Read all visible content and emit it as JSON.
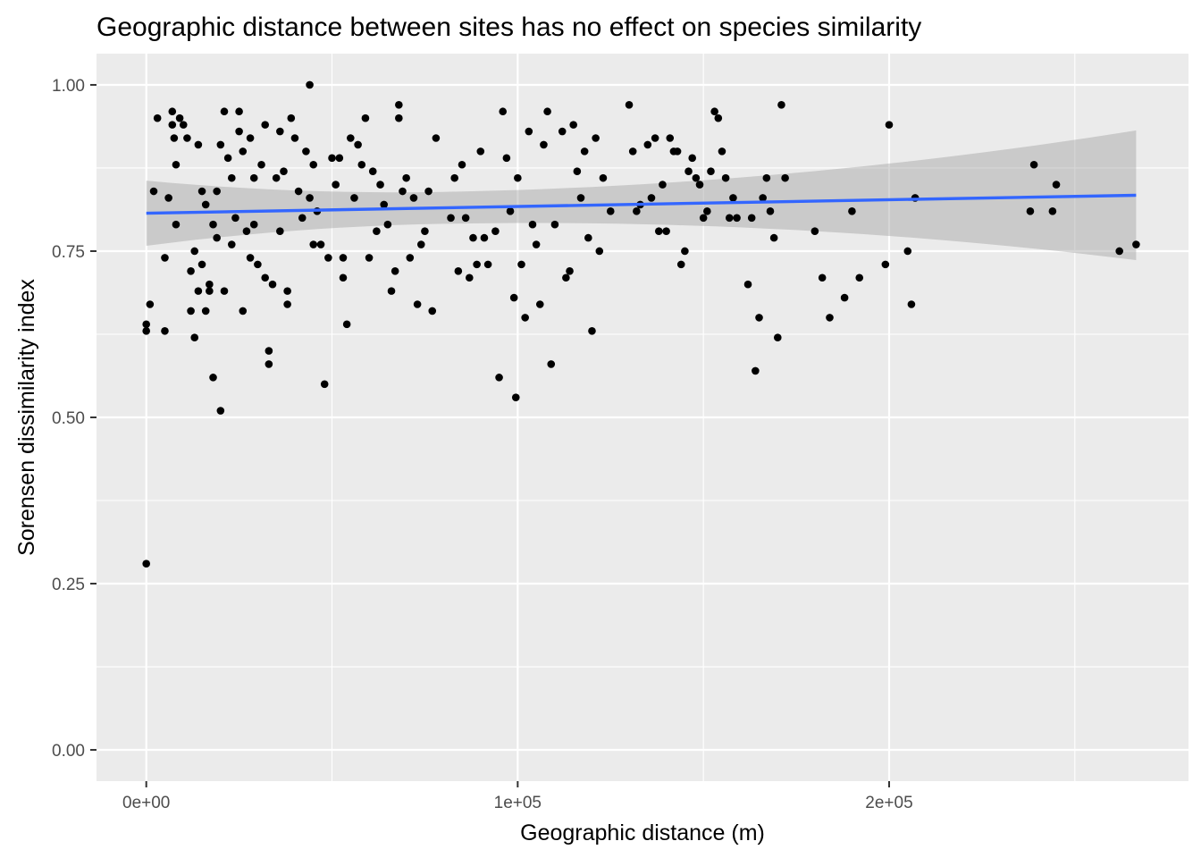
{
  "chart_data": {
    "type": "scatter",
    "title": "Geographic distance between sites has no effect on species similarity",
    "xlabel": "Geographic distance (m)",
    "ylabel": "Sorensen dissimilarity index",
    "xlim": [
      -13400,
      280600
    ],
    "ylim": [
      -0.047,
      1.047
    ],
    "x_ticks": [
      {
        "value": 0,
        "label": "0e+00"
      },
      {
        "value": 100000,
        "label": "1e+05"
      },
      {
        "value": 200000,
        "label": "2e+05"
      }
    ],
    "x_minor_ticks": [
      50000,
      150000,
      250000
    ],
    "y_ticks": [
      {
        "value": 0.0,
        "label": "0.00"
      },
      {
        "value": 0.25,
        "label": "0.25"
      },
      {
        "value": 0.5,
        "label": "0.50"
      },
      {
        "value": 0.75,
        "label": "0.75"
      },
      {
        "value": 1.0,
        "label": "1.00"
      }
    ],
    "y_minor_ticks": [
      0.125,
      0.375,
      0.625,
      0.875
    ],
    "grid": true,
    "legend": "none",
    "colors": {
      "panel": "#ebebeb",
      "grid": "#ffffff",
      "points": "#000000",
      "fit_line": "#3366ff",
      "confidence_band": "#999999"
    },
    "points": [
      {
        "x": 0,
        "y": 0.28
      },
      {
        "x": 0,
        "y": 0.63
      },
      {
        "x": 0,
        "y": 0.64
      },
      {
        "x": 1000,
        "y": 0.67
      },
      {
        "x": 2000,
        "y": 0.84
      },
      {
        "x": 3000,
        "y": 0.95
      },
      {
        "x": 5000,
        "y": 0.74
      },
      {
        "x": 5000,
        "y": 0.63
      },
      {
        "x": 6000,
        "y": 0.83
      },
      {
        "x": 7000,
        "y": 0.94
      },
      {
        "x": 7000,
        "y": 0.96
      },
      {
        "x": 7500,
        "y": 0.92
      },
      {
        "x": 8000,
        "y": 0.88
      },
      {
        "x": 8000,
        "y": 0.79
      },
      {
        "x": 9000,
        "y": 0.95
      },
      {
        "x": 10000,
        "y": 0.94
      },
      {
        "x": 11000,
        "y": 0.92
      },
      {
        "x": 12000,
        "y": 0.72
      },
      {
        "x": 12000,
        "y": 0.66
      },
      {
        "x": 13000,
        "y": 0.75
      },
      {
        "x": 13000,
        "y": 0.62
      },
      {
        "x": 14000,
        "y": 0.69
      },
      {
        "x": 14000,
        "y": 0.91
      },
      {
        "x": 15000,
        "y": 0.84
      },
      {
        "x": 15000,
        "y": 0.73
      },
      {
        "x": 16000,
        "y": 0.82
      },
      {
        "x": 16000,
        "y": 0.66
      },
      {
        "x": 17000,
        "y": 0.7
      },
      {
        "x": 17000,
        "y": 0.69
      },
      {
        "x": 18000,
        "y": 0.79
      },
      {
        "x": 18000,
        "y": 0.56
      },
      {
        "x": 19000,
        "y": 0.84
      },
      {
        "x": 19000,
        "y": 0.77
      },
      {
        "x": 20000,
        "y": 0.51
      },
      {
        "x": 20000,
        "y": 0.91
      },
      {
        "x": 21000,
        "y": 0.96
      },
      {
        "x": 21000,
        "y": 0.69
      },
      {
        "x": 22000,
        "y": 0.89
      },
      {
        "x": 23000,
        "y": 0.86
      },
      {
        "x": 23000,
        "y": 0.76
      },
      {
        "x": 24000,
        "y": 0.8
      },
      {
        "x": 25000,
        "y": 0.93
      },
      {
        "x": 25000,
        "y": 0.96
      },
      {
        "x": 26000,
        "y": 0.9
      },
      {
        "x": 26000,
        "y": 0.66
      },
      {
        "x": 27000,
        "y": 0.78
      },
      {
        "x": 28000,
        "y": 0.92
      },
      {
        "x": 28000,
        "y": 0.74
      },
      {
        "x": 29000,
        "y": 0.86
      },
      {
        "x": 29000,
        "y": 0.79
      },
      {
        "x": 30000,
        "y": 0.73
      },
      {
        "x": 31000,
        "y": 0.88
      },
      {
        "x": 32000,
        "y": 0.94
      },
      {
        "x": 32000,
        "y": 0.71
      },
      {
        "x": 33000,
        "y": 0.6
      },
      {
        "x": 33000,
        "y": 0.58
      },
      {
        "x": 34000,
        "y": 0.7
      },
      {
        "x": 35000,
        "y": 0.86
      },
      {
        "x": 36000,
        "y": 0.93
      },
      {
        "x": 36000,
        "y": 0.78
      },
      {
        "x": 37000,
        "y": 0.87
      },
      {
        "x": 38000,
        "y": 0.69
      },
      {
        "x": 38000,
        "y": 0.67
      },
      {
        "x": 39000,
        "y": 0.95
      },
      {
        "x": 40000,
        "y": 0.92
      },
      {
        "x": 41000,
        "y": 0.84
      },
      {
        "x": 42000,
        "y": 0.8
      },
      {
        "x": 43000,
        "y": 0.9
      },
      {
        "x": 44000,
        "y": 0.83
      },
      {
        "x": 44000,
        "y": 1.0
      },
      {
        "x": 45000,
        "y": 0.88
      },
      {
        "x": 45000,
        "y": 0.76
      },
      {
        "x": 46000,
        "y": 0.81
      },
      {
        "x": 47000,
        "y": 0.76
      },
      {
        "x": 48000,
        "y": 0.55
      },
      {
        "x": 49000,
        "y": 0.74
      },
      {
        "x": 50000,
        "y": 0.89
      },
      {
        "x": 51000,
        "y": 0.85
      },
      {
        "x": 52000,
        "y": 0.89
      },
      {
        "x": 53000,
        "y": 0.71
      },
      {
        "x": 53000,
        "y": 0.74
      },
      {
        "x": 54000,
        "y": 0.64
      },
      {
        "x": 55000,
        "y": 0.92
      },
      {
        "x": 56000,
        "y": 0.83
      },
      {
        "x": 57000,
        "y": 0.91
      },
      {
        "x": 58000,
        "y": 0.88
      },
      {
        "x": 59000,
        "y": 0.95
      },
      {
        "x": 60000,
        "y": 0.74
      },
      {
        "x": 61000,
        "y": 0.87
      },
      {
        "x": 62000,
        "y": 0.78
      },
      {
        "x": 63000,
        "y": 0.85
      },
      {
        "x": 64000,
        "y": 0.82
      },
      {
        "x": 65000,
        "y": 0.79
      },
      {
        "x": 66000,
        "y": 0.69
      },
      {
        "x": 67000,
        "y": 0.72
      },
      {
        "x": 68000,
        "y": 0.95
      },
      {
        "x": 68000,
        "y": 0.97
      },
      {
        "x": 69000,
        "y": 0.84
      },
      {
        "x": 70000,
        "y": 0.86
      },
      {
        "x": 71000,
        "y": 0.74
      },
      {
        "x": 72000,
        "y": 0.83
      },
      {
        "x": 73000,
        "y": 0.67
      },
      {
        "x": 74000,
        "y": 0.76
      },
      {
        "x": 75000,
        "y": 0.78
      },
      {
        "x": 76000,
        "y": 0.84
      },
      {
        "x": 77000,
        "y": 0.66
      },
      {
        "x": 78000,
        "y": 0.92
      },
      {
        "x": 82000,
        "y": 0.8
      },
      {
        "x": 83000,
        "y": 0.86
      },
      {
        "x": 84000,
        "y": 0.72
      },
      {
        "x": 85000,
        "y": 0.88
      },
      {
        "x": 86000,
        "y": 0.8
      },
      {
        "x": 87000,
        "y": 0.71
      },
      {
        "x": 88000,
        "y": 0.77
      },
      {
        "x": 89000,
        "y": 0.73
      },
      {
        "x": 90000,
        "y": 0.9
      },
      {
        "x": 91000,
        "y": 0.77
      },
      {
        "x": 92000,
        "y": 0.73
      },
      {
        "x": 94000,
        "y": 0.78
      },
      {
        "x": 95000,
        "y": 0.56
      },
      {
        "x": 96000,
        "y": 0.96
      },
      {
        "x": 97000,
        "y": 0.89
      },
      {
        "x": 98000,
        "y": 0.81
      },
      {
        "x": 99000,
        "y": 0.68
      },
      {
        "x": 99500,
        "y": 0.53
      },
      {
        "x": 100000,
        "y": 0.86
      },
      {
        "x": 101000,
        "y": 0.73
      },
      {
        "x": 102000,
        "y": 0.65
      },
      {
        "x": 103000,
        "y": 0.93
      },
      {
        "x": 104000,
        "y": 0.79
      },
      {
        "x": 105000,
        "y": 0.76
      },
      {
        "x": 106000,
        "y": 0.67
      },
      {
        "x": 107000,
        "y": 0.91
      },
      {
        "x": 108000,
        "y": 0.96
      },
      {
        "x": 109000,
        "y": 0.58
      },
      {
        "x": 110000,
        "y": 0.79
      },
      {
        "x": 112000,
        "y": 0.93
      },
      {
        "x": 113000,
        "y": 0.71
      },
      {
        "x": 114000,
        "y": 0.72
      },
      {
        "x": 115000,
        "y": 0.94
      },
      {
        "x": 116000,
        "y": 0.87
      },
      {
        "x": 117000,
        "y": 0.83
      },
      {
        "x": 118000,
        "y": 0.9
      },
      {
        "x": 119000,
        "y": 0.77
      },
      {
        "x": 120000,
        "y": 0.63
      },
      {
        "x": 121000,
        "y": 0.92
      },
      {
        "x": 122000,
        "y": 0.75
      },
      {
        "x": 123000,
        "y": 0.86
      },
      {
        "x": 125000,
        "y": 0.81
      },
      {
        "x": 130000,
        "y": 0.97
      },
      {
        "x": 131000,
        "y": 0.9
      },
      {
        "x": 132000,
        "y": 0.81
      },
      {
        "x": 133000,
        "y": 0.82
      },
      {
        "x": 135000,
        "y": 0.91
      },
      {
        "x": 136000,
        "y": 0.83
      },
      {
        "x": 137000,
        "y": 0.92
      },
      {
        "x": 138000,
        "y": 0.78
      },
      {
        "x": 139000,
        "y": 0.85
      },
      {
        "x": 140000,
        "y": 0.78
      },
      {
        "x": 141000,
        "y": 0.92
      },
      {
        "x": 142000,
        "y": 0.9
      },
      {
        "x": 143000,
        "y": 0.9
      },
      {
        "x": 144000,
        "y": 0.73
      },
      {
        "x": 145000,
        "y": 0.75
      },
      {
        "x": 146000,
        "y": 0.87
      },
      {
        "x": 147000,
        "y": 0.89
      },
      {
        "x": 148000,
        "y": 0.86
      },
      {
        "x": 149000,
        "y": 0.85
      },
      {
        "x": 150000,
        "y": 0.8
      },
      {
        "x": 151000,
        "y": 0.81
      },
      {
        "x": 152000,
        "y": 0.87
      },
      {
        "x": 153000,
        "y": 0.96
      },
      {
        "x": 154000,
        "y": 0.95
      },
      {
        "x": 155000,
        "y": 0.9
      },
      {
        "x": 156000,
        "y": 0.86
      },
      {
        "x": 157000,
        "y": 0.8
      },
      {
        "x": 158000,
        "y": 0.83
      },
      {
        "x": 159000,
        "y": 0.8
      },
      {
        "x": 162000,
        "y": 0.7
      },
      {
        "x": 163000,
        "y": 0.8
      },
      {
        "x": 164000,
        "y": 0.57
      },
      {
        "x": 165000,
        "y": 0.65
      },
      {
        "x": 166000,
        "y": 0.83
      },
      {
        "x": 167000,
        "y": 0.86
      },
      {
        "x": 168000,
        "y": 0.81
      },
      {
        "x": 169000,
        "y": 0.77
      },
      {
        "x": 170000,
        "y": 0.62
      },
      {
        "x": 171000,
        "y": 0.97
      },
      {
        "x": 172000,
        "y": 0.86
      },
      {
        "x": 180000,
        "y": 0.78
      },
      {
        "x": 182000,
        "y": 0.71
      },
      {
        "x": 184000,
        "y": 0.65
      },
      {
        "x": 188000,
        "y": 0.68
      },
      {
        "x": 190000,
        "y": 0.81
      },
      {
        "x": 192000,
        "y": 0.71
      },
      {
        "x": 199000,
        "y": 0.73
      },
      {
        "x": 200000,
        "y": 0.94
      },
      {
        "x": 205000,
        "y": 0.75
      },
      {
        "x": 206000,
        "y": 0.67
      },
      {
        "x": 207000,
        "y": 0.83
      },
      {
        "x": 238000,
        "y": 0.81
      },
      {
        "x": 239000,
        "y": 0.88
      },
      {
        "x": 244000,
        "y": 0.81
      },
      {
        "x": 245000,
        "y": 0.85
      },
      {
        "x": 262000,
        "y": 0.75
      },
      {
        "x": 266500,
        "y": 0.76
      }
    ],
    "fit": {
      "method": "linear",
      "x_start": 0,
      "y_start": 0.807,
      "x_end": 266500,
      "y_end": 0.834,
      "band_lower_start": 0.754,
      "band_upper_start": 0.852,
      "band_lower_end": 0.715,
      "band_upper_end": 0.91
    }
  }
}
